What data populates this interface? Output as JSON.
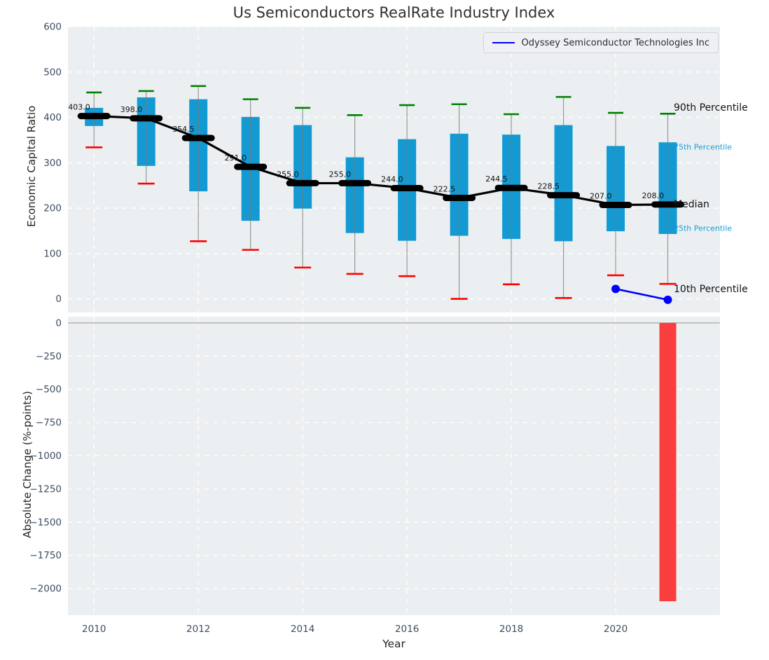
{
  "title": "Us Semiconductors RealRate Industry Index",
  "legend": {
    "label": "Odyssey Semiconductor Technologies Inc"
  },
  "colors": {
    "box": "#149ad2",
    "p90_cap": "#008000",
    "p10_cap": "#ff0000",
    "median_line": "#000000",
    "median_label": "#111111",
    "company_line": "#0000ff",
    "change_bar": "#fa3d3d",
    "plot_bg": "#eceff1",
    "grid": "#ffffff",
    "tick": "#3b4d63",
    "axis_text": "#262626",
    "annotation_black": "#111111",
    "annotation_cyan": "#19a0d5",
    "whisker": "#7a7a7a",
    "zero_line": "#a6a6a6"
  },
  "chart_data": [
    {
      "type": "boxplot",
      "title": "Us Semiconductors RealRate Industry Index",
      "ylabel": "Economic Capital Ratio",
      "ylim": [
        -30,
        600
      ],
      "yticks": [
        0,
        100,
        200,
        300,
        400,
        500,
        600
      ],
      "ytick_labels": [
        "0",
        "100",
        "200",
        "300",
        "400",
        "500",
        "600"
      ],
      "xlim": [
        2009.5,
        2022
      ],
      "xticks": [
        2010,
        2012,
        2014,
        2016,
        2018,
        2020
      ],
      "xtick_labels": [
        "2010",
        "2012",
        "2014",
        "2016",
        "2018",
        "2020"
      ],
      "grid": true,
      "legend_position": "upper right",
      "years": [
        2010,
        2011,
        2012,
        2013,
        2014,
        2015,
        2016,
        2017,
        2018,
        2019,
        2020,
        2021
      ],
      "series": {
        "p90": [
          455,
          458,
          469,
          440,
          421,
          405,
          427,
          429,
          407,
          445,
          410,
          408
        ],
        "p75": [
          421,
          444,
          440,
          401,
          383,
          312,
          352,
          364,
          362,
          383,
          337,
          345
        ],
        "median": [
          403,
          398,
          354.5,
          291,
          255,
          255,
          244,
          222.5,
          244.5,
          228.5,
          207,
          208
        ],
        "p25": [
          381,
          293,
          237,
          172,
          199,
          145,
          128,
          139,
          132,
          127,
          149,
          143
        ],
        "p10": [
          334,
          254,
          127,
          108,
          69,
          55,
          50,
          0,
          32,
          2,
          52,
          33
        ]
      },
      "median_labels": [
        "403.0",
        "398.0",
        "354.5",
        "291.0",
        "255.0",
        "255.0",
        "244.0",
        "222.5",
        "244.5",
        "228.5",
        "207.0",
        "208.0"
      ],
      "company": {
        "name": "Odyssey Semiconductor Technologies Inc",
        "x": [
          2020,
          2021
        ],
        "y": [
          22,
          -2
        ]
      },
      "percentile_annotations": [
        {
          "id": "p90-label",
          "text": "90th Percentile",
          "value": 408,
          "style": "black"
        },
        {
          "id": "p75-label",
          "text": "75th Percentile",
          "value": 345,
          "style": "cyan"
        },
        {
          "id": "median-label",
          "text": "Median",
          "value": 208,
          "style": "black"
        },
        {
          "id": "p25-label",
          "text": "25th Percentile",
          "value": 143,
          "style": "cyan"
        },
        {
          "id": "p10-label",
          "text": "10th Percentile",
          "value": 33,
          "style": "black"
        }
      ]
    },
    {
      "type": "bar",
      "ylabel": "Absolute Change (%-points)",
      "xlabel": "Year",
      "ylim": [
        -2200,
        47
      ],
      "yticks": [
        0,
        -250,
        -500,
        -750,
        -1000,
        -1250,
        -1500,
        -1750,
        -2000
      ],
      "ytick_labels": [
        "0",
        "−250",
        "−500",
        "−750",
        "−1000",
        "−1250",
        "−1500",
        "−1750",
        "−2000"
      ],
      "xticks": [
        2010,
        2012,
        2014,
        2016,
        2018,
        2020
      ],
      "xtick_labels": [
        "2010",
        "2012",
        "2014",
        "2016",
        "2018",
        "2020"
      ],
      "grid": true,
      "bars": [
        {
          "x": 2021,
          "value": -2095
        }
      ]
    }
  ]
}
